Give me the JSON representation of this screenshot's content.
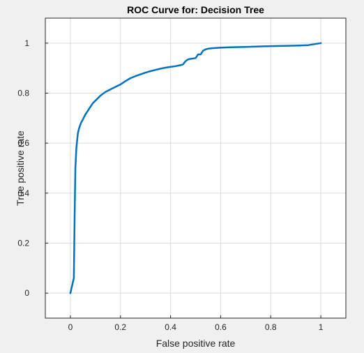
{
  "figure": {
    "background": "#f0f0f0",
    "axes_background": "#ffffff",
    "grid_color": "#dcdcdc",
    "axis_color": "#262626"
  },
  "chart_data": {
    "type": "line",
    "title": "ROC Curve for: Decision Tree",
    "xlabel": "False positive rate",
    "ylabel": "True positive rate",
    "xlim": [
      -0.1,
      1.1
    ],
    "ylim": [
      -0.1,
      1.1
    ],
    "x_ticks": [
      0,
      0.2,
      0.4,
      0.6,
      0.8,
      1
    ],
    "y_ticks": [
      0,
      0.2,
      0.4,
      0.6,
      0.8,
      1
    ],
    "x_tick_labels": [
      "0",
      "0.2",
      "0.4",
      "0.6",
      "0.8",
      "1"
    ],
    "y_tick_labels": [
      "0",
      "0.2",
      "0.4",
      "0.6",
      "0.8",
      "1"
    ],
    "grid": true,
    "series": [
      {
        "color": "#0072bd",
        "x": [
          0,
          0.014,
          0.017,
          0.02,
          0.024,
          0.03,
          0.035,
          0.042,
          0.05,
          0.06,
          0.07,
          0.08,
          0.09,
          0.1,
          0.12,
          0.14,
          0.16,
          0.18,
          0.2,
          0.22,
          0.24,
          0.26,
          0.28,
          0.3,
          0.32,
          0.34,
          0.36,
          0.38,
          0.4,
          0.42,
          0.44,
          0.45,
          0.46,
          0.47,
          0.48,
          0.5,
          0.51,
          0.52,
          0.53,
          0.54,
          0.55,
          0.57,
          0.6,
          0.65,
          0.7,
          0.8,
          0.9,
          0.95,
          1.0
        ],
        "y": [
          0,
          0.06,
          0.3,
          0.5,
          0.58,
          0.64,
          0.66,
          0.68,
          0.695,
          0.715,
          0.73,
          0.745,
          0.76,
          0.77,
          0.79,
          0.805,
          0.815,
          0.825,
          0.835,
          0.848,
          0.86,
          0.868,
          0.875,
          0.882,
          0.888,
          0.893,
          0.898,
          0.902,
          0.905,
          0.908,
          0.912,
          0.915,
          0.928,
          0.935,
          0.937,
          0.94,
          0.955,
          0.955,
          0.97,
          0.975,
          0.978,
          0.98,
          0.982,
          0.984,
          0.985,
          0.988,
          0.99,
          0.992,
          1.0
        ]
      }
    ]
  }
}
